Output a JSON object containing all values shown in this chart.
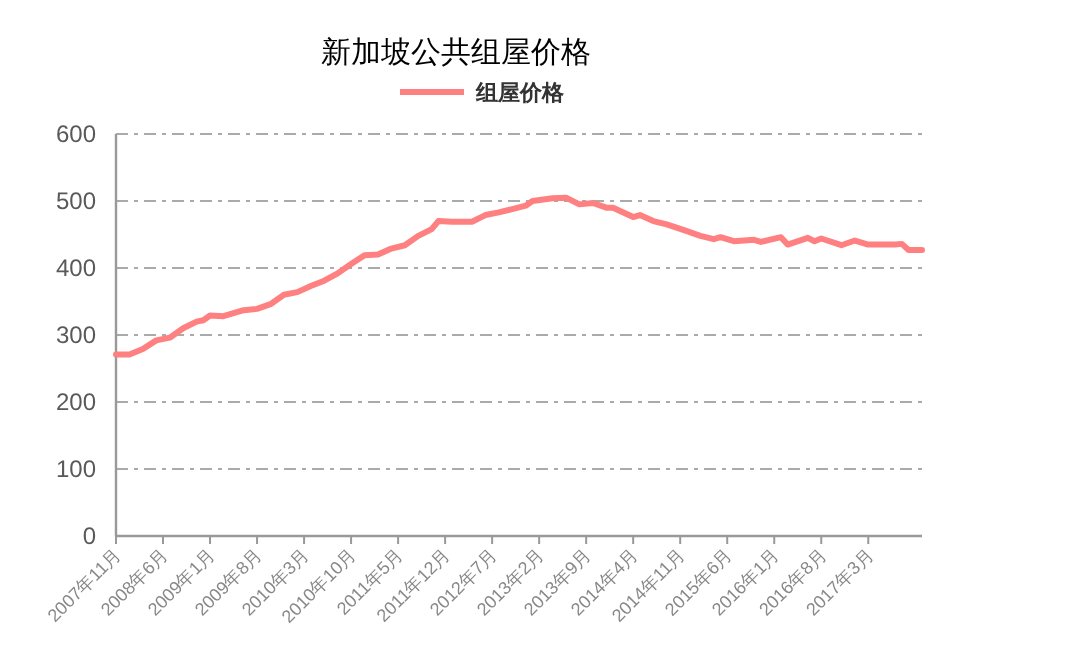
{
  "chart_data": {
    "type": "line",
    "title": "新加坡公共组屋价格",
    "legend": "top",
    "grid": "y",
    "marker": "none",
    "line_style": "solid",
    "x": [
      "2007-11",
      "2008-01",
      "2008-03",
      "2008-05",
      "2008-07",
      "2008-09",
      "2008-11",
      "2008-12",
      "2009-01",
      "2009-03",
      "2009-04",
      "2009-06",
      "2009-08",
      "2009-10",
      "2009-12",
      "2010-02",
      "2010-04",
      "2010-06",
      "2010-08",
      "2010-10",
      "2010-12",
      "2011-02",
      "2011-04",
      "2011-06",
      "2011-08",
      "2011-10",
      "2011-11",
      "2012-01",
      "2012-04",
      "2012-06",
      "2012-08",
      "2012-10",
      "2012-12",
      "2013-01",
      "2013-04",
      "2013-06",
      "2013-08",
      "2013-10",
      "2013-12",
      "2014-01",
      "2014-04",
      "2014-05",
      "2014-07",
      "2014-09",
      "2014-12",
      "2015-02",
      "2015-04",
      "2015-05",
      "2015-07",
      "2015-10",
      "2015-11",
      "2016-02",
      "2016-03",
      "2016-06",
      "2016-07",
      "2016-08",
      "2016-11",
      "2017-01",
      "2017-03",
      "2017-07",
      "2017-08",
      "2017-09",
      "2017-11"
    ],
    "series": [
      {
        "name": "组屋价格",
        "color": "#ff8080",
        "values": [
          271,
          271,
          279,
          292,
          296,
          310,
          320,
          322,
          329,
          328,
          331,
          337,
          339,
          346,
          360,
          364,
          373,
          381,
          392,
          406,
          419,
          420,
          429,
          434,
          448,
          458,
          470,
          469,
          469,
          479,
          483,
          488,
          493,
          500,
          504,
          505,
          495,
          497,
          490,
          490,
          476,
          479,
          470,
          465,
          455,
          448,
          443,
          446,
          440,
          442,
          439,
          446,
          435,
          445,
          440,
          444,
          434,
          441,
          435,
          435,
          436,
          427,
          427
        ]
      }
    ],
    "xlim": [
      "2007-11",
      "2017-11"
    ],
    "xticks": [
      {
        "value": "2007-11",
        "label": "2007年11月"
      },
      {
        "value": "2008-06",
        "label": "2008年6月"
      },
      {
        "value": "2009-01",
        "label": "2009年1月"
      },
      {
        "value": "2009-08",
        "label": "2009年8月"
      },
      {
        "value": "2010-03",
        "label": "2010年3月"
      },
      {
        "value": "2010-10",
        "label": "2010年10月"
      },
      {
        "value": "2011-05",
        "label": "2011年5月"
      },
      {
        "value": "2011-12",
        "label": "2011年12月"
      },
      {
        "value": "2012-07",
        "label": "2012年7月"
      },
      {
        "value": "2013-02",
        "label": "2013年2月"
      },
      {
        "value": "2013-09",
        "label": "2013年9月"
      },
      {
        "value": "2014-04",
        "label": "2014年4月"
      },
      {
        "value": "2014-11",
        "label": "2014年11月"
      },
      {
        "value": "2015-06",
        "label": "2015年6月"
      },
      {
        "value": "2016-01",
        "label": "2016年1月"
      },
      {
        "value": "2016-08",
        "label": "2016年8月"
      },
      {
        "value": "2017-03",
        "label": "2017年3月"
      }
    ],
    "ylim": [
      0,
      600
    ],
    "yticks": [
      0,
      100,
      200,
      300,
      400,
      500,
      600
    ]
  }
}
